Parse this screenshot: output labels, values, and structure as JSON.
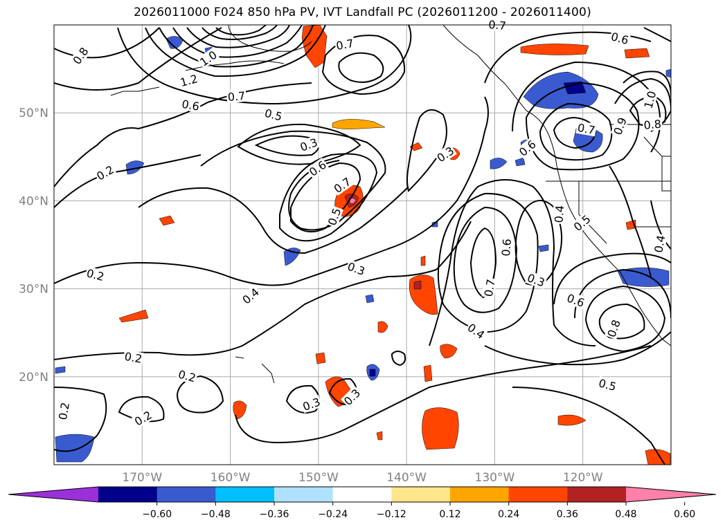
{
  "title": "2026011000 F024 850 hPa PV, IVT Landfall PC (2026011200 - 2026011400)",
  "map": {
    "lon_labels": [
      "170°W",
      "160°W",
      "150°W",
      "140°W",
      "130°W",
      "120°W"
    ],
    "lat_labels": [
      "50°N",
      "40°N",
      "30°N",
      "20°N"
    ],
    "lon_range": [
      -180,
      -110
    ],
    "lat_range": [
      10,
      60
    ]
  },
  "colorbar": {
    "tick_labels": [
      "−0.60",
      "−0.48",
      "−0.36",
      "−0.24",
      "−0.12",
      "0.12",
      "0.24",
      "0.36",
      "0.48",
      "0.60"
    ],
    "colors": [
      "#9b30d8",
      "#00008b",
      "#3a5bd0",
      "#00bfff",
      "#b0e2ff",
      "#ffffff",
      "#ffe68a",
      "#ffa500",
      "#ff4500",
      "#b22222",
      "#ff80a8"
    ],
    "extend": "both"
  },
  "contour_labels": [
    {
      "text": "0.8",
      "lon": -177.0,
      "lat": 56.5,
      "rot": -55
    },
    {
      "text": "1.0",
      "lon": -162.5,
      "lat": 56.2,
      "rot": -35
    },
    {
      "text": "1.2",
      "lon": -164.7,
      "lat": 53.7,
      "rot": -15
    },
    {
      "text": "0.7",
      "lon": -159.3,
      "lat": 51.9,
      "rot": -5
    },
    {
      "text": "0.6",
      "lon": -164.5,
      "lat": 50.9,
      "rot": 10
    },
    {
      "text": "0.5",
      "lon": -155.1,
      "lat": 49.8,
      "rot": 15
    },
    {
      "text": "0.7",
      "lon": -147.0,
      "lat": 57.8,
      "rot": -10
    },
    {
      "text": "0.7",
      "lon": -129.7,
      "lat": 60.0,
      "rot": 5
    },
    {
      "text": "0.6",
      "lon": -115.8,
      "lat": 58.5,
      "rot": 15
    },
    {
      "text": "0.3",
      "lon": -151.1,
      "lat": 46.4,
      "rot": -20
    },
    {
      "text": "0.6",
      "lon": -150.1,
      "lat": 43.7,
      "rot": -35
    },
    {
      "text": "0.7",
      "lon": -147.3,
      "lat": 41.8,
      "rot": -35
    },
    {
      "text": "0.5",
      "lon": -148.2,
      "lat": 38.2,
      "rot": -70
    },
    {
      "text": "0.3",
      "lon": -135.6,
      "lat": 45.3,
      "rot": -35
    },
    {
      "text": "0.2",
      "lon": -174.2,
      "lat": 43.2,
      "rot": -30
    },
    {
      "text": "0.2",
      "lon": -175.3,
      "lat": 31.6,
      "rot": 15
    },
    {
      "text": "0.4",
      "lon": -157.7,
      "lat": 29.2,
      "rot": -40
    },
    {
      "text": "0.3",
      "lon": -145.7,
      "lat": 32.3,
      "rot": 20
    },
    {
      "text": "0.2",
      "lon": -171.0,
      "lat": 22.2,
      "rot": 10
    },
    {
      "text": "0.2",
      "lon": -164.9,
      "lat": 20.1,
      "rot": 15
    },
    {
      "text": "0.2",
      "lon": -178.9,
      "lat": 16.1,
      "rot": -80
    },
    {
      "text": "0.2",
      "lon": -169.9,
      "lat": 15.3,
      "rot": -30
    },
    {
      "text": "0.3",
      "lon": -150.8,
      "lat": 16.9,
      "rot": -20
    },
    {
      "text": "0.3",
      "lon": -146.2,
      "lat": 17.7,
      "rot": -45
    },
    {
      "text": "0.7",
      "lon": -130.6,
      "lat": 30.1,
      "rot": -80
    },
    {
      "text": "0.6",
      "lon": -128.7,
      "lat": 34.7,
      "rot": -85
    },
    {
      "text": "0.3",
      "lon": -125.3,
      "lat": 31.0,
      "rot": 20
    },
    {
      "text": "0.4",
      "lon": -132.1,
      "lat": 25.2,
      "rot": 35
    },
    {
      "text": "0.4",
      "lon": -122.7,
      "lat": 38.5,
      "rot": -85
    },
    {
      "text": "0.5",
      "lon": -120.1,
      "lat": 37.5,
      "rot": -40
    },
    {
      "text": "0.6",
      "lon": -120.8,
      "lat": 28.7,
      "rot": 20
    },
    {
      "text": "0.8",
      "lon": -116.5,
      "lat": 25.5,
      "rot": -70
    },
    {
      "text": "0.4",
      "lon": -111.3,
      "lat": 35.1,
      "rot": -80
    },
    {
      "text": "0.5",
      "lon": -117.2,
      "lat": 19.1,
      "rot": 15
    },
    {
      "text": "1.0",
      "lon": -112.4,
      "lat": 51.5,
      "rot": -75
    },
    {
      "text": "0.8",
      "lon": -112.1,
      "lat": 48.7,
      "rot": -5
    },
    {
      "text": "0.9",
      "lon": -115.8,
      "lat": 48.5,
      "rot": -70
    },
    {
      "text": "0.7",
      "lon": -119.6,
      "lat": 48.2,
      "rot": 10
    },
    {
      "text": "0.6",
      "lon": -126.3,
      "lat": 46.0,
      "rot": -40
    }
  ]
}
